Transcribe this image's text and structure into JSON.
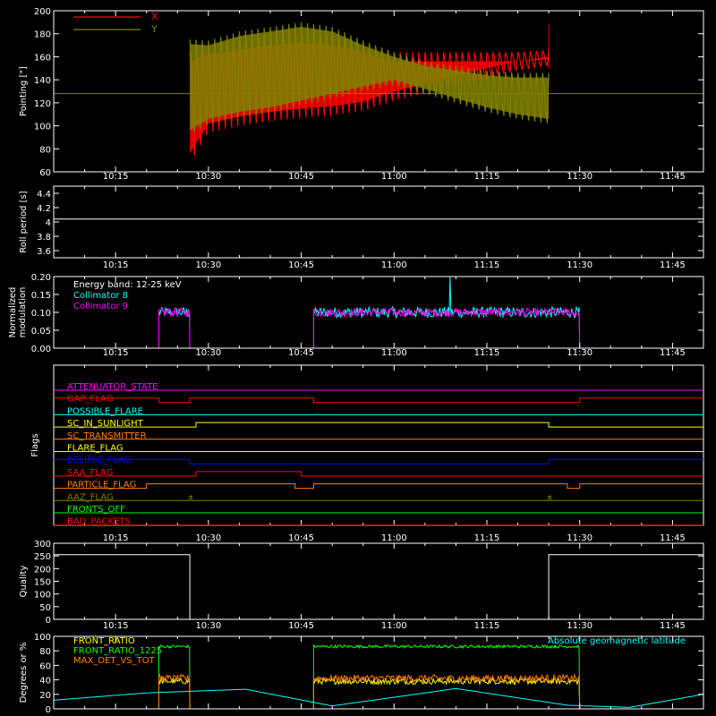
{
  "colors": {
    "background": "#000000",
    "axes": "#ffffff",
    "red": "#ff0000",
    "olive": "#808000",
    "cyan": "#00ffff",
    "magenta": "#ff00ff",
    "yellow": "#ffff00",
    "orange": "#ff8000",
    "green": "#00ff00",
    "blue": "#0000ff",
    "white": "#ffffff"
  },
  "chart_data": [
    {
      "id": "pointing",
      "type": "line",
      "xlabel": "",
      "ylabel": "Pointing [\"]",
      "xlim": [
        "10:05",
        "11:50"
      ],
      "ylim": [
        60,
        200
      ],
      "yticks": [
        60,
        80,
        100,
        120,
        140,
        160,
        180,
        200
      ],
      "xticks": [
        "10:15",
        "10:30",
        "10:45",
        "11:00",
        "11:15",
        "11:30",
        "11:45"
      ],
      "legend": "top-left",
      "series": [
        {
          "name": "X",
          "color": "#ff0000",
          "envelope_x": [
            "10:27",
            "10:30",
            "10:35",
            "10:40",
            "10:45",
            "10:50",
            "10:55",
            "11:00",
            "11:05",
            "11:10",
            "11:15",
            "11:20",
            "11:25"
          ],
          "envelope_upper": [
            164,
            170,
            174,
            178,
            180,
            178,
            172,
            164,
            164,
            164,
            164,
            164,
            166
          ],
          "envelope_lower": [
            68,
            94,
            100,
            104,
            107,
            109,
            113,
            122,
            128,
            136,
            142,
            148,
            152
          ]
        },
        {
          "name": "Y",
          "color": "#808000",
          "envelope_x": [
            "10:27",
            "10:30",
            "10:35",
            "10:40",
            "10:45",
            "10:50",
            "10:55",
            "11:00",
            "11:05",
            "11:10",
            "11:15",
            "11:20",
            "11:25"
          ],
          "envelope_upper": [
            175,
            174,
            182,
            186,
            190,
            186,
            174,
            164,
            156,
            152,
            148,
            146,
            146
          ],
          "envelope_lower": [
            92,
            102,
            108,
            112,
            118,
            124,
            130,
            136,
            128,
            120,
            112,
            106,
            102
          ]
        }
      ],
      "reference_line": 128
    },
    {
      "id": "roll",
      "type": "line",
      "xlabel": "",
      "ylabel": "Roll period [s]",
      "xlim": [
        "10:05",
        "11:50"
      ],
      "ylim": [
        3.5,
        4.5
      ],
      "yticks": [
        3.6,
        3.8,
        4.0,
        4.2,
        4.4
      ],
      "xticks": [
        "10:15",
        "10:30",
        "10:45",
        "11:00",
        "11:15",
        "11:30",
        "11:45"
      ],
      "series": [
        {
          "name": "",
          "color": "#ffffff",
          "x": [
            "10:05",
            "11:50"
          ],
          "y": [
            4.04,
            4.04
          ]
        }
      ]
    },
    {
      "id": "modulation",
      "type": "line",
      "xlabel": "",
      "ylabel_lines": [
        "Normalized",
        "modulation"
      ],
      "xlim": [
        "10:05",
        "11:50"
      ],
      "ylim": [
        0,
        0.2
      ],
      "yticks": [
        0.0,
        0.05,
        0.1,
        0.15,
        0.2
      ],
      "ytick_labels": [
        "0.00",
        "0.05",
        "0.10",
        "0.15",
        "0.20"
      ],
      "xticks": [
        "10:15",
        "10:30",
        "10:45",
        "11:00",
        "11:15",
        "11:30",
        "11:45"
      ],
      "legend_title": "Energy band: 12-25 keV",
      "legend": "top-left",
      "intervals": [
        [
          "10:22",
          "10:27"
        ],
        [
          "10:47",
          "11:30"
        ]
      ],
      "series": [
        {
          "name": "Collimator 8",
          "color": "#00ffff",
          "mean": 0.1,
          "spread": 0.015,
          "spike": [
            "11:09",
            0.2
          ]
        },
        {
          "name": "Collimator 9",
          "color": "#ff00ff",
          "mean": 0.1,
          "spread": 0.012
        }
      ]
    },
    {
      "id": "flags",
      "type": "line",
      "xlabel": "",
      "ylabel": "Flags",
      "xlim": [
        "10:05",
        "11:50"
      ],
      "xticks": [
        "10:15",
        "10:30",
        "10:45",
        "11:00",
        "11:15",
        "11:30",
        "11:45"
      ],
      "series": [
        {
          "name": "ATTENUATOR_STATE",
          "color": "#ff00ff",
          "segments": []
        },
        {
          "name": "GAP_FLAG",
          "color": "#ff0000",
          "segments": [
            [
              "10:05",
              "10:22",
              1
            ],
            [
              "10:22",
              "10:27",
              0
            ],
            [
              "10:27",
              "10:47",
              1
            ],
            [
              "10:47",
              "11:30",
              0
            ],
            [
              "11:30",
              "11:50",
              1
            ]
          ]
        },
        {
          "name": "POSSIBLE_FLARE",
          "color": "#00ffff",
          "segments": []
        },
        {
          "name": "SC_IN_SUNLIGHT",
          "color": "#ffff00",
          "segments": [
            [
              "10:05",
              "10:28",
              0
            ],
            [
              "10:28",
              "11:25",
              1
            ],
            [
              "11:25",
              "11:50",
              0
            ]
          ]
        },
        {
          "name": "SC_TRANSMITTER",
          "color": "#ff8000",
          "segments": []
        },
        {
          "name": "FLARE_FLAG",
          "color": "#ffff00",
          "segments": []
        },
        {
          "name": "ECLIPSE_FLAG",
          "color": "#0000ff",
          "segments": [
            [
              "10:05",
              "10:27",
              1
            ],
            [
              "10:27",
              "11:25",
              0
            ],
            [
              "11:25",
              "11:50",
              1
            ]
          ]
        },
        {
          "name": "SAA_FLAG",
          "color": "#ff0000",
          "segments": [
            [
              "10:05",
              "10:28",
              0
            ],
            [
              "10:28",
              "10:45",
              1
            ],
            [
              "10:45",
              "11:50",
              0
            ]
          ]
        },
        {
          "name": "PARTICLE_FLAG",
          "color": "#ff8000",
          "segments": [
            [
              "10:05",
              "10:20",
              0
            ],
            [
              "10:20",
              "10:44",
              1
            ],
            [
              "10:44",
              "10:47",
              0
            ],
            [
              "10:47",
              "11:28",
              1
            ],
            [
              "11:28",
              "11:30",
              0
            ],
            [
              "11:30",
              "11:50",
              1
            ]
          ]
        },
        {
          "name": "AAZ_FLAG",
          "color": "#808000",
          "segments": [
            [
              "10:05",
              "10:27",
              0
            ],
            [
              "10:27",
              "10:27.3",
              1
            ],
            [
              "10:27.3",
              "11:25",
              0
            ],
            [
              "11:25",
              "11:25.3",
              1
            ],
            [
              "11:25.3",
              "11:50",
              0
            ]
          ]
        },
        {
          "name": "FRONTS_OFF",
          "color": "#00ff00",
          "segments": []
        },
        {
          "name": "BAD_PACKETS",
          "color": "#ff0000",
          "segments": []
        }
      ]
    },
    {
      "id": "quality",
      "type": "line",
      "xlabel": "",
      "ylabel": "Quality",
      "xlim": [
        "10:05",
        "11:50"
      ],
      "ylim": [
        0,
        300
      ],
      "yticks": [
        0,
        50,
        100,
        150,
        200,
        250,
        300
      ],
      "xticks": [
        "10:15",
        "10:30",
        "10:45",
        "11:00",
        "11:15",
        "11:30",
        "11:45"
      ],
      "series": [
        {
          "name": "",
          "color": "#ffffff",
          "x": [
            "10:05",
            "10:27",
            "10:27",
            "11:25",
            "11:25",
            "11:50"
          ],
          "y": [
            255,
            255,
            0,
            0,
            255,
            255
          ]
        }
      ]
    },
    {
      "id": "ratios",
      "type": "line",
      "xlabel": "",
      "ylabel": "Degrees or %",
      "xlim": [
        "10:05",
        "11:50"
      ],
      "ylim": [
        0,
        100
      ],
      "yticks": [
        0,
        20,
        40,
        60,
        80,
        100
      ],
      "xticks": [
        "10:15",
        "10:30",
        "10:45",
        "11:00",
        "11:15",
        "11:30",
        "11:45"
      ],
      "legend": "top-left",
      "intervals": [
        [
          "10:22",
          "10:27"
        ],
        [
          "10:47",
          "11:30"
        ]
      ],
      "series": [
        {
          "name": "FRONT_RATIO",
          "color": "#ffff00",
          "mean": 38,
          "spread": 4
        },
        {
          "name": "FRONT_RATIO_1225",
          "color": "#00ff00",
          "mean": 86,
          "spread": 2
        },
        {
          "name": "MAX_DET_VS_TOT",
          "color": "#ff8000",
          "mean": 42,
          "spread": 5
        },
        {
          "name": "Absolute geomagnetic latitude",
          "color": "#00ffff",
          "x": [
            "10:05",
            "10:20",
            "10:36",
            "10:50",
            "11:10",
            "11:28",
            "11:38",
            "11:50"
          ],
          "y": [
            12,
            22,
            27,
            4,
            28,
            5,
            2,
            20
          ]
        }
      ]
    }
  ]
}
